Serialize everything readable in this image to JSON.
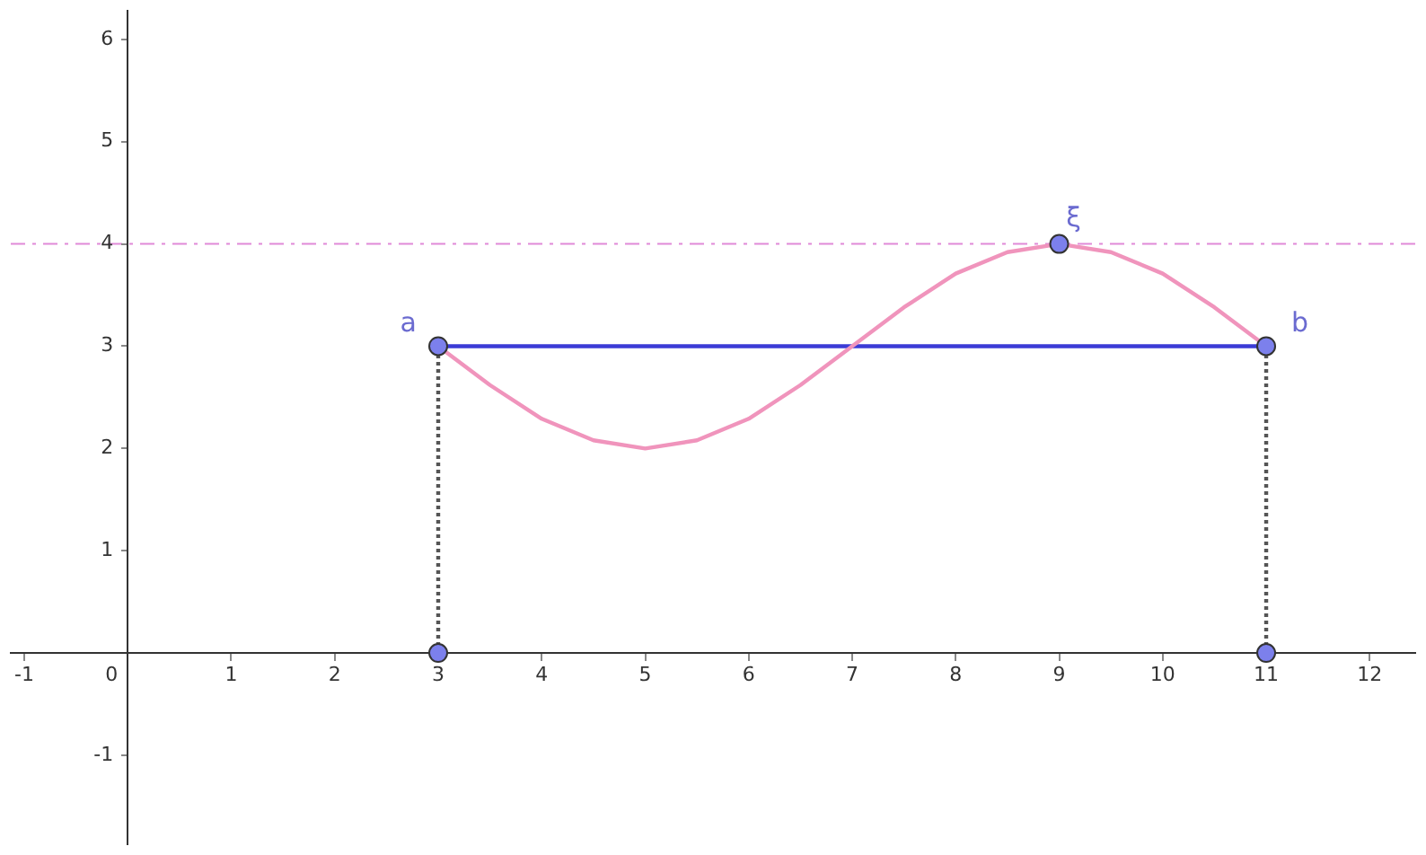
{
  "chart_data": {
    "type": "line",
    "xlim": [
      -1.13,
      12.44
    ],
    "ylim": [
      -1.87,
      6.28
    ],
    "xticks": [
      -1,
      0,
      1,
      2,
      3,
      4,
      5,
      6,
      7,
      8,
      9,
      10,
      11,
      12
    ],
    "yticks": [
      -1,
      {
        "value": 0,
        "label": null
      },
      1,
      2,
      3,
      4,
      5,
      6
    ],
    "grid": false,
    "legend": false,
    "series": [
      {
        "type": "line",
        "color": "#f094bc",
        "x": [
          3,
          3.5,
          4,
          4.5,
          5,
          5.5,
          6,
          6.5,
          7,
          7.5,
          8,
          8.5,
          9,
          9.5,
          10,
          10.5,
          11
        ],
        "values": [
          3,
          2.62,
          2.29,
          2.08,
          2,
          2.08,
          2.29,
          2.62,
          3,
          3.38,
          3.71,
          3.92,
          4,
          3.92,
          3.71,
          3.38,
          3
        ],
        "marker": "none",
        "line_style": "solid"
      },
      {
        "type": "line",
        "color": "#3b3bd6",
        "x": [
          3,
          11
        ],
        "values": [
          3,
          3
        ],
        "marker": "none",
        "line_style": "solid"
      },
      {
        "type": "line",
        "color": "#555555",
        "x": [
          3,
          3
        ],
        "values": [
          0,
          3
        ],
        "marker": "none",
        "line_style": "dotted"
      },
      {
        "type": "line",
        "color": "#555555",
        "x": [
          11,
          11
        ],
        "values": [
          0,
          3
        ],
        "marker": "none",
        "line_style": "dotted"
      },
      {
        "type": "scatter",
        "color": "#7c80ec",
        "x": [
          3,
          11,
          9,
          3,
          11
        ],
        "values": [
          3,
          3,
          4,
          0,
          0
        ],
        "marker": "circle"
      }
    ],
    "ref_lines": [
      {
        "axis": "y",
        "value": 4,
        "color": "#e08ad8",
        "line_style": "dashed"
      }
    ],
    "annotations": [
      {
        "text": "a",
        "x": 3,
        "y": 3
      },
      {
        "text": "b",
        "x": 11,
        "y": 3
      },
      {
        "text": "ξ",
        "x": 9,
        "y": 4
      }
    ]
  }
}
